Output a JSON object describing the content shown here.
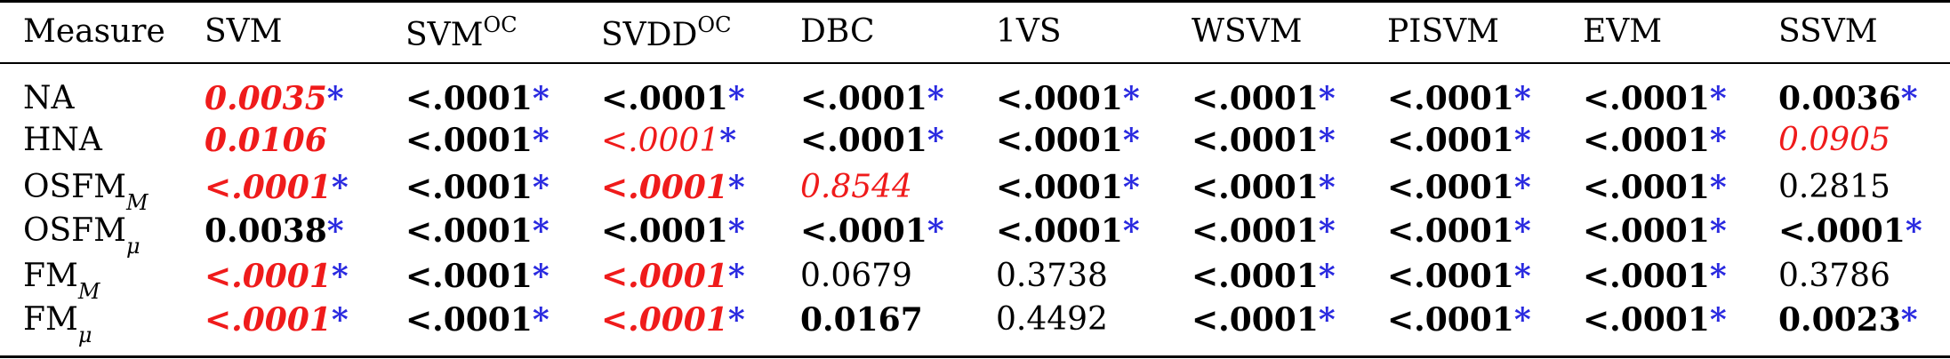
{
  "table": {
    "headers": [
      {
        "text": "Measure",
        "sup": ""
      },
      {
        "text": "SVM",
        "sup": ""
      },
      {
        "text": "SVM",
        "sup": "OC"
      },
      {
        "text": "SVDD",
        "sup": "OC"
      },
      {
        "text": "DBC",
        "sup": ""
      },
      {
        "text": "1VS",
        "sup": ""
      },
      {
        "text": "WSVM",
        "sup": ""
      },
      {
        "text": "PISVM",
        "sup": ""
      },
      {
        "text": "EVM",
        "sup": ""
      },
      {
        "text": "SSVM",
        "sup": ""
      }
    ],
    "rows": [
      {
        "measure": {
          "text": "NA",
          "sub": ""
        },
        "cells": [
          {
            "v": "0.0035",
            "star": "*",
            "style": "bold red italic"
          },
          {
            "v": "<.0001",
            "star": "*",
            "style": "bold"
          },
          {
            "v": "<.0001",
            "star": "*",
            "style": "bold"
          },
          {
            "v": "<.0001",
            "star": "*",
            "style": "bold"
          },
          {
            "v": "<.0001",
            "star": "*",
            "style": "bold"
          },
          {
            "v": "<.0001",
            "star": "*",
            "style": "bold"
          },
          {
            "v": "<.0001",
            "star": "*",
            "style": "bold"
          },
          {
            "v": "<.0001",
            "star": "*",
            "style": "bold"
          },
          {
            "v": "0.0036",
            "star": "*",
            "style": "bold"
          }
        ]
      },
      {
        "measure": {
          "text": "HNA",
          "sub": ""
        },
        "cells": [
          {
            "v": "0.0106",
            "star": "",
            "style": "bold red italic"
          },
          {
            "v": "<.0001",
            "star": "*",
            "style": "bold"
          },
          {
            "v": "<.0001",
            "star": "*",
            "style": "red italic"
          },
          {
            "v": "<.0001",
            "star": "*",
            "style": "bold"
          },
          {
            "v": "<.0001",
            "star": "*",
            "style": "bold"
          },
          {
            "v": "<.0001",
            "star": "*",
            "style": "bold"
          },
          {
            "v": "<.0001",
            "star": "*",
            "style": "bold"
          },
          {
            "v": "<.0001",
            "star": "*",
            "style": "bold"
          },
          {
            "v": "0.0905",
            "star": "",
            "style": "red italic"
          }
        ]
      },
      {
        "measure": {
          "text": "OSFM",
          "sub": "M"
        },
        "cells": [
          {
            "v": "<.0001",
            "star": "*",
            "style": "bold red italic"
          },
          {
            "v": "<.0001",
            "star": "*",
            "style": "bold"
          },
          {
            "v": "<.0001",
            "star": "*",
            "style": "bold red italic"
          },
          {
            "v": "0.8544",
            "star": "",
            "style": "red italic"
          },
          {
            "v": "<.0001",
            "star": "*",
            "style": "bold"
          },
          {
            "v": "<.0001",
            "star": "*",
            "style": "bold"
          },
          {
            "v": "<.0001",
            "star": "*",
            "style": "bold"
          },
          {
            "v": "<.0001",
            "star": "*",
            "style": "bold"
          },
          {
            "v": "0.2815",
            "star": "",
            "style": ""
          }
        ]
      },
      {
        "measure": {
          "text": "OSFM",
          "sub": "μ"
        },
        "cells": [
          {
            "v": "0.0038",
            "star": "*",
            "style": "bold"
          },
          {
            "v": "<.0001",
            "star": "*",
            "style": "bold"
          },
          {
            "v": "<.0001",
            "star": "*",
            "style": "bold"
          },
          {
            "v": "<.0001",
            "star": "*",
            "style": "bold"
          },
          {
            "v": "<.0001",
            "star": "*",
            "style": "bold"
          },
          {
            "v": "<.0001",
            "star": "*",
            "style": "bold"
          },
          {
            "v": "<.0001",
            "star": "*",
            "style": "bold"
          },
          {
            "v": "<.0001",
            "star": "*",
            "style": "bold"
          },
          {
            "v": "<.0001",
            "star": "*",
            "style": "bold"
          }
        ]
      },
      {
        "measure": {
          "text": "FM",
          "sub": "M"
        },
        "cells": [
          {
            "v": "<.0001",
            "star": "*",
            "style": "bold red italic"
          },
          {
            "v": "<.0001",
            "star": "*",
            "style": "bold"
          },
          {
            "v": "<.0001",
            "star": "*",
            "style": "bold red italic"
          },
          {
            "v": "0.0679",
            "star": "",
            "style": ""
          },
          {
            "v": "0.3738",
            "star": "",
            "style": ""
          },
          {
            "v": "<.0001",
            "star": "*",
            "style": "bold"
          },
          {
            "v": "<.0001",
            "star": "*",
            "style": "bold"
          },
          {
            "v": "<.0001",
            "star": "*",
            "style": "bold"
          },
          {
            "v": "0.3786",
            "star": "",
            "style": ""
          }
        ]
      },
      {
        "measure": {
          "text": "FM",
          "sub": "μ"
        },
        "cells": [
          {
            "v": "<.0001",
            "star": "*",
            "style": "bold red italic"
          },
          {
            "v": "<.0001",
            "star": "*",
            "style": "bold"
          },
          {
            "v": "<.0001",
            "star": "*",
            "style": "bold red italic"
          },
          {
            "v": "0.0167",
            "star": "",
            "style": "bold"
          },
          {
            "v": "0.4492",
            "star": "",
            "style": ""
          },
          {
            "v": "<.0001",
            "star": "*",
            "style": "bold"
          },
          {
            "v": "<.0001",
            "star": "*",
            "style": "bold"
          },
          {
            "v": "<.0001",
            "star": "*",
            "style": "bold"
          },
          {
            "v": "0.0023",
            "star": "*",
            "style": "bold"
          }
        ]
      }
    ]
  },
  "colors": {
    "highlight": "#ef1b1b",
    "significance_star": "#2a2ae0",
    "text": "#000000",
    "rules": "#000000"
  }
}
